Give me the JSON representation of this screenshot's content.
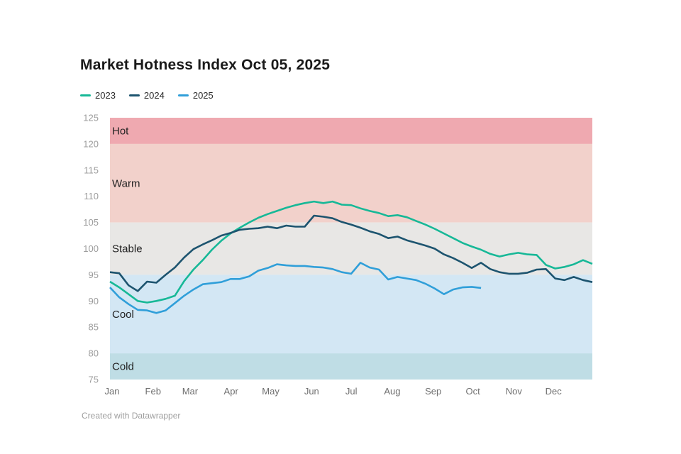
{
  "title": "Market Hotness Index Oct 05, 2025",
  "footer": "Created with Datawrapper",
  "legend": {
    "items": [
      {
        "label": "2023",
        "color": "#17b897"
      },
      {
        "label": "2024",
        "color": "#1d546f"
      },
      {
        "label": "2025",
        "color": "#309fd9"
      }
    ]
  },
  "chart_data": {
    "type": "line",
    "title": "Market Hotness Index Oct 05, 2025",
    "x_unit": "weekly points, Jan 1 to Dec 31",
    "grid": "off",
    "legend_position": "top-left",
    "y_axis": {
      "range": [
        75,
        125
      ],
      "ticks": [
        75,
        80,
        85,
        90,
        95,
        100,
        105,
        110,
        115,
        120,
        125
      ],
      "tick_color": "#9c9c9c"
    },
    "x_axis": {
      "months": [
        {
          "label": "Jan",
          "day": 0
        },
        {
          "label": "Feb",
          "day": 31
        },
        {
          "label": "Mar",
          "day": 59
        },
        {
          "label": "Apr",
          "day": 90
        },
        {
          "label": "May",
          "day": 120
        },
        {
          "label": "Jun",
          "day": 151
        },
        {
          "label": "Jul",
          "day": 181
        },
        {
          "label": "Aug",
          "day": 212
        },
        {
          "label": "Sep",
          "day": 243
        },
        {
          "label": "Oct",
          "day": 273
        },
        {
          "label": "Nov",
          "day": 304
        },
        {
          "label": "Dec",
          "day": 334
        }
      ],
      "days_in_year": 365,
      "tick_color": "#6f6f6f"
    },
    "bands": [
      {
        "label": "Hot",
        "from": 120,
        "to": 125,
        "color": "#efa9b0"
      },
      {
        "label": "Warm",
        "from": 105,
        "to": 120,
        "color": "#f2d1cb"
      },
      {
        "label": "Stable",
        "from": 95,
        "to": 105,
        "color": "#e8e7e5"
      },
      {
        "label": "Cool",
        "from": 80,
        "to": 95,
        "color": "#d3e7f4"
      },
      {
        "label": "Cold",
        "from": 75,
        "to": 80,
        "color": "#bfdde5"
      }
    ],
    "band_label_color": "#222222",
    "series": [
      {
        "name": "2023",
        "color": "#17b897",
        "values": [
          93.7,
          92.6,
          91.3,
          90.0,
          89.7,
          90.0,
          90.4,
          91.0,
          93.8,
          96.0,
          97.8,
          99.8,
          101.5,
          102.9,
          104.0,
          105.0,
          105.9,
          106.6,
          107.2,
          107.8,
          108.3,
          108.7,
          109.0,
          108.7,
          109.0,
          108.4,
          108.3,
          107.7,
          107.2,
          106.8,
          106.2,
          106.4,
          106.0,
          105.3,
          104.6,
          103.8,
          102.9,
          102.0,
          101.1,
          100.4,
          99.8,
          99.0,
          98.5,
          98.9,
          99.2,
          98.9,
          98.8,
          96.9,
          96.2,
          96.5,
          97.0,
          97.8,
          97.1
        ]
      },
      {
        "name": "2024",
        "color": "#1d546f",
        "values": [
          95.5,
          95.3,
          93.0,
          91.9,
          93.7,
          93.5,
          95.0,
          96.4,
          98.3,
          99.9,
          100.8,
          101.6,
          102.5,
          103.0,
          103.6,
          103.8,
          103.9,
          104.2,
          103.9,
          104.4,
          104.2,
          104.2,
          106.3,
          106.1,
          105.8,
          105.1,
          104.6,
          104.0,
          103.3,
          102.8,
          102.0,
          102.3,
          101.6,
          101.1,
          100.6,
          100.0,
          98.9,
          98.2,
          97.3,
          96.3,
          97.3,
          96.1,
          95.5,
          95.2,
          95.2,
          95.4,
          96.0,
          96.1,
          94.3,
          94.0,
          94.6,
          94.0,
          93.6
        ]
      },
      {
        "name": "2025",
        "color": "#309fd9",
        "values": [
          92.6,
          90.7,
          89.4,
          88.3,
          88.2,
          87.7,
          88.2,
          89.6,
          91.0,
          92.2,
          93.2,
          93.4,
          93.6,
          94.2,
          94.2,
          94.7,
          95.8,
          96.3,
          97.0,
          96.8,
          96.7,
          96.7,
          96.5,
          96.4,
          96.1,
          95.5,
          95.2,
          97.3,
          96.4,
          96.0,
          94.1,
          94.6,
          94.3,
          94.0,
          93.3,
          92.4,
          91.3,
          92.2,
          92.6,
          92.7,
          92.5
        ]
      }
    ]
  }
}
